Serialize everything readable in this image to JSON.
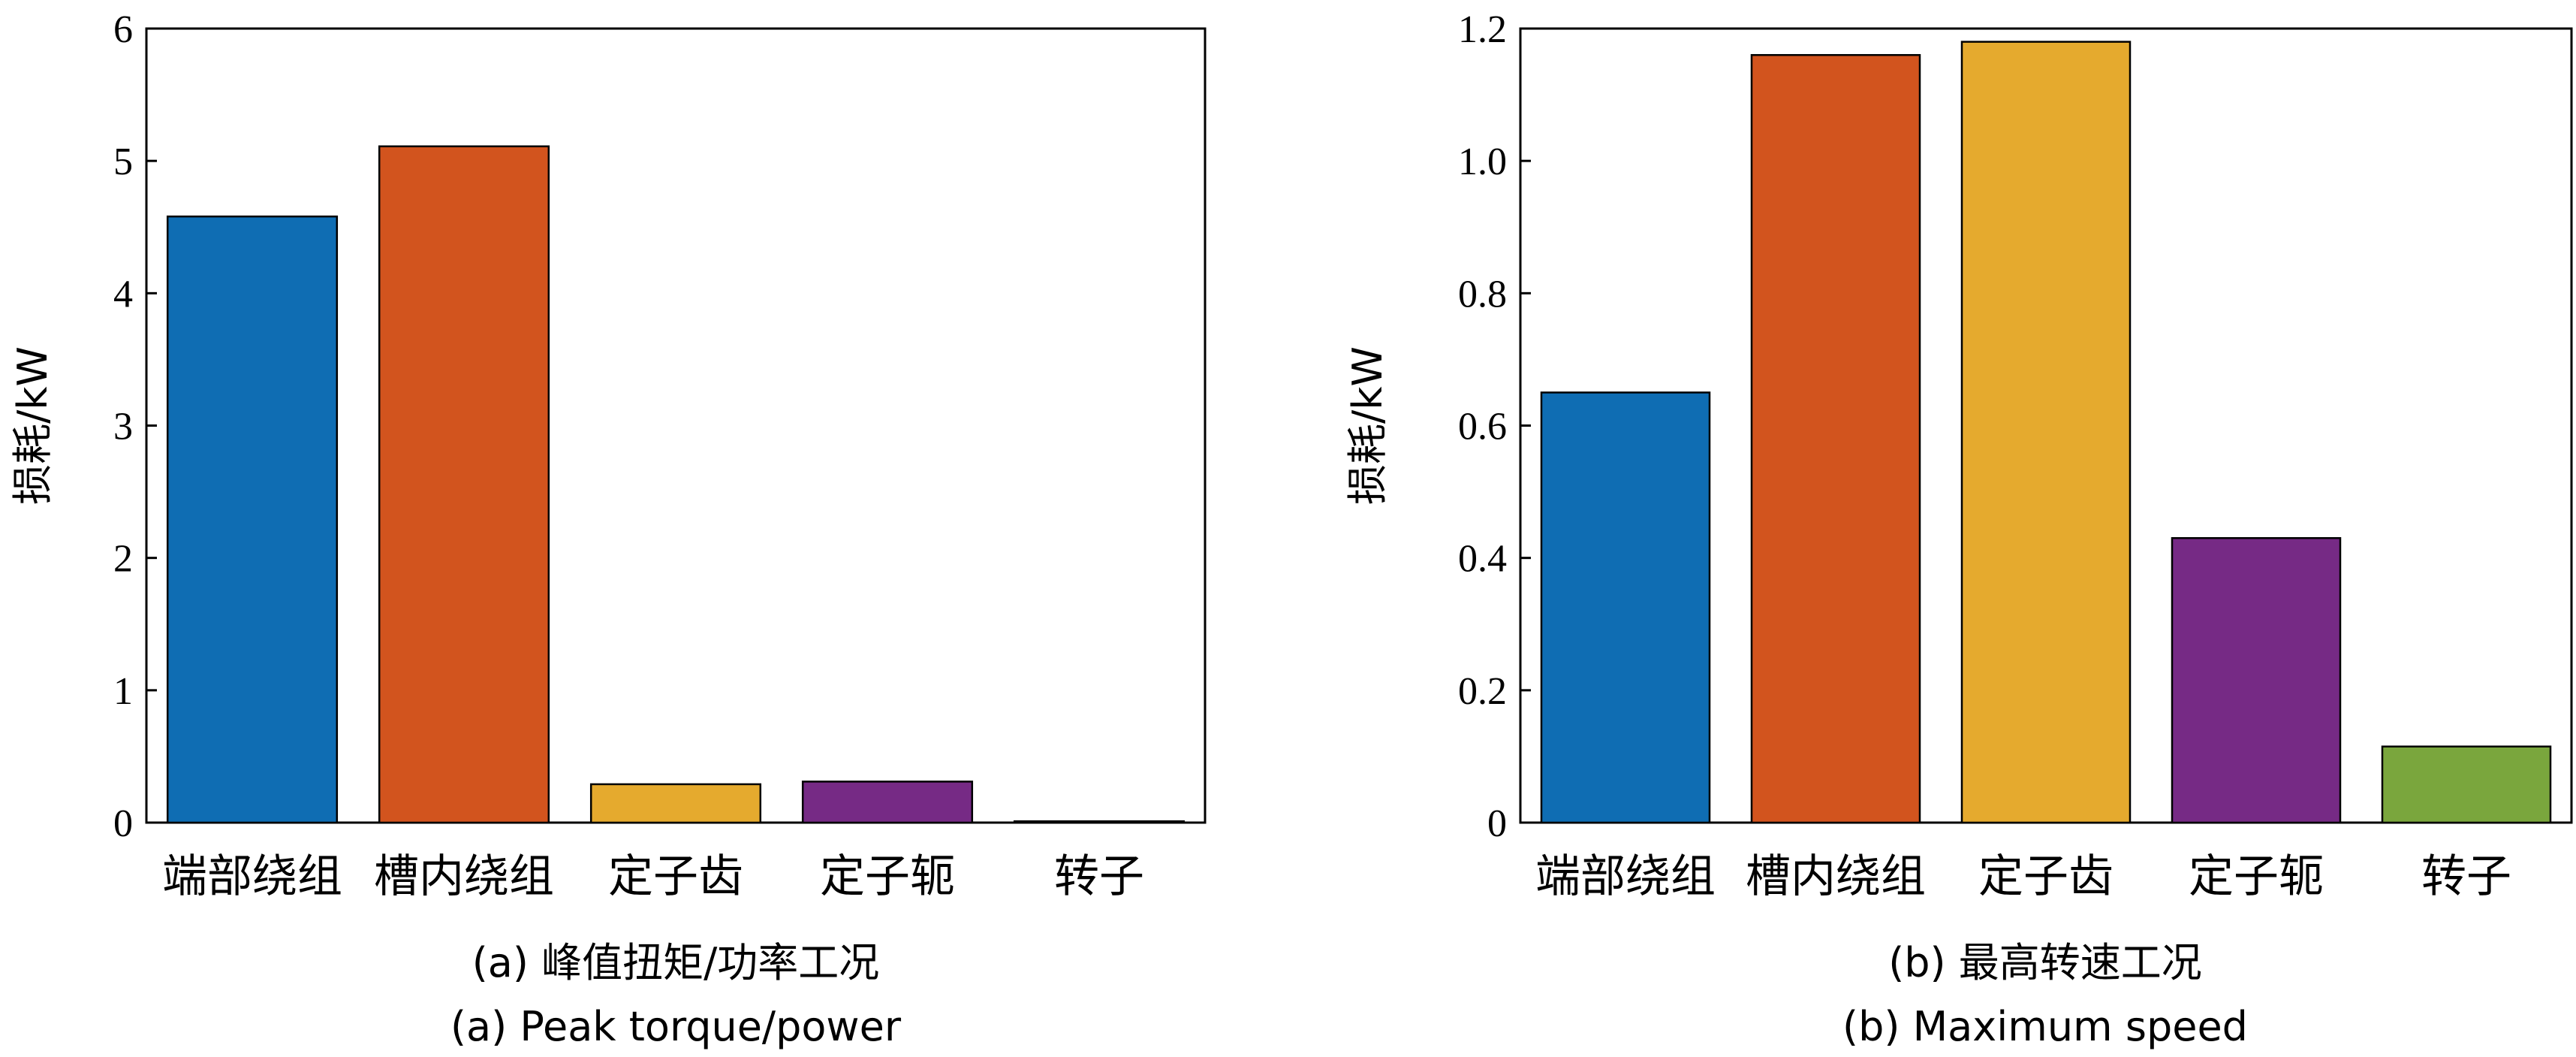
{
  "chart_data": [
    {
      "type": "bar",
      "caption_cn": "(a) 峰值扭矩/功率工况",
      "caption_en": "(a) Peak torque/power",
      "ylabel": "损耗/kW",
      "xlabel": "",
      "categories": [
        "端部绕组",
        "槽内绕组",
        "定子齿",
        "定子轭",
        "转子"
      ],
      "values": [
        4.58,
        5.11,
        0.29,
        0.31,
        0.01
      ],
      "colors": [
        "#0f6db3",
        "#d2541e",
        "#e5aa2e",
        "#762a85",
        "#7aa63d"
      ],
      "ylim": [
        0,
        6
      ],
      "yticks": [
        "0",
        "1",
        "2",
        "3",
        "4",
        "5",
        "6"
      ],
      "grid": false
    },
    {
      "type": "bar",
      "caption_cn": "(b) 最高转速工况",
      "caption_en": "(b) Maximum speed",
      "ylabel": "损耗/kW",
      "xlabel": "",
      "categories": [
        "端部绕组",
        "槽内绕组",
        "定子齿",
        "定子轭",
        "转子"
      ],
      "values": [
        0.65,
        1.16,
        1.18,
        0.43,
        0.115
      ],
      "colors": [
        "#0f6db3",
        "#d2541e",
        "#e5aa2e",
        "#762a85",
        "#7aa63d"
      ],
      "ylim": [
        0,
        1.2
      ],
      "yticks": [
        "0",
        "0.2",
        "0.4",
        "0.6",
        "0.8",
        "1.0",
        "1.2"
      ],
      "grid": false
    }
  ]
}
